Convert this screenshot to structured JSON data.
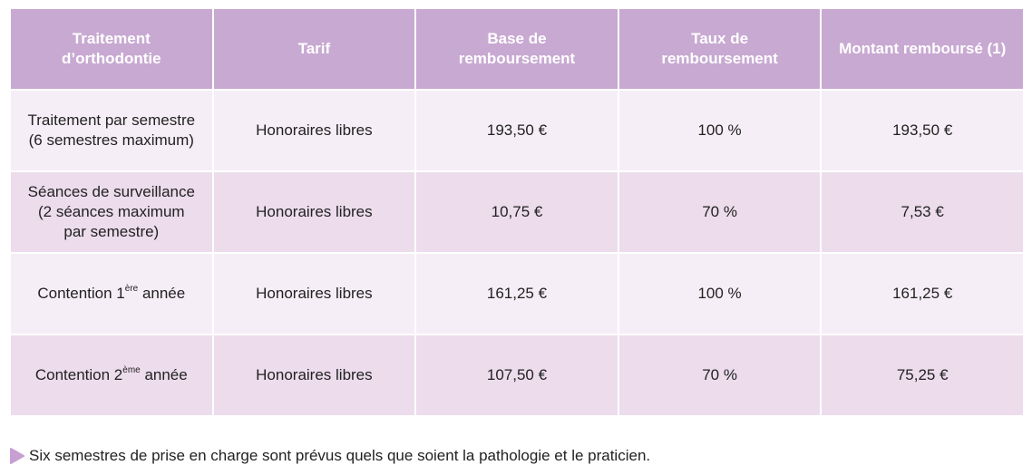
{
  "table": {
    "headers": [
      "Traitement\nd’orthodontie",
      "Tarif",
      "Base de\nremboursement",
      "Taux de\nremboursement",
      "Montant remboursé (1)"
    ],
    "rows": [
      [
        "Traitement par semestre\n(6 semestres maximum)",
        "Honoraires libres",
        "193,50 €",
        "100 %",
        "193,50 €"
      ],
      [
        "Séances de surveillance\n(2 séances maximum\npar semestre)",
        "Honoraires libres",
        "10,75 €",
        "70 %",
        "7,53 €"
      ],
      [
        {
          "text": "Contention 1",
          "sup": "ère",
          "tail": " année"
        },
        "Honoraires libres",
        "161,25 €",
        "100 %",
        "161,25 €"
      ],
      [
        {
          "text": "Contention 2",
          "sup": "ème",
          "tail": " année"
        },
        "Honoraires libres",
        "107,50 €",
        "70 %",
        "75,25 €"
      ]
    ]
  },
  "note": "Six semestres de prise en charge sont prévus quels que soient la pathologie et le praticien."
}
